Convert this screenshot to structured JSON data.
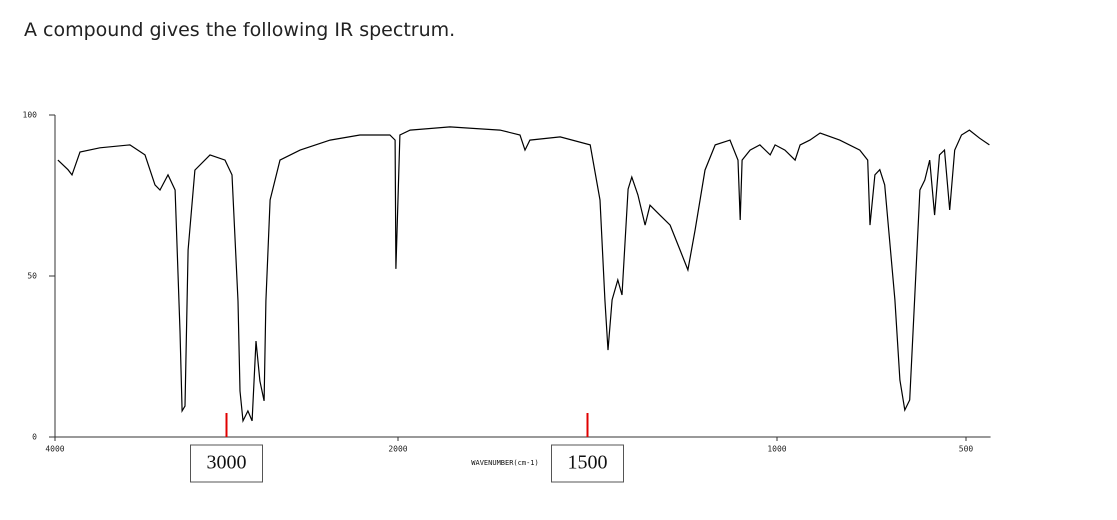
{
  "chart_data": {
    "type": "line",
    "title": "A compound gives the following IR spectrum.",
    "x_label": "WAVENUMBER(cm-1)",
    "x": [
      3983,
      3924,
      3901,
      3854,
      3738,
      3563,
      3475,
      3417,
      3388,
      3341,
      3300,
      3271,
      3259,
      3242,
      3224,
      3184,
      3096,
      3009,
      2968,
      2933,
      2921,
      2904,
      2875,
      2851,
      2828,
      2805,
      2781,
      2770,
      2746,
      2688,
      2571,
      2396,
      2222,
      2047,
      2017,
      2012,
      2000,
      1995,
      1968,
      1863,
      1731,
      1678,
      1665,
      1652,
      1572,
      1493,
      1467,
      1454,
      1446,
      1435,
      1420,
      1409,
      1393,
      1383,
      1367,
      1348,
      1335,
      1309,
      1282,
      1256,
      1235,
      1216,
      1190,
      1163,
      1124,
      1103,
      1097,
      1092,
      1071,
      1045,
      1018,
      1005,
      979,
      952,
      939,
      913,
      886,
      834,
      781,
      760,
      754,
      741,
      728,
      715,
      688,
      675,
      662,
      649,
      636,
      622,
      609,
      596,
      583,
      570,
      557,
      543,
      530,
      512,
      491,
      464,
      438
    ],
    "values": [
      86.0,
      83.0,
      81.4,
      88.5,
      89.8,
      90.7,
      87.6,
      78.3,
      76.7,
      81.4,
      76.7,
      32.9,
      8.1,
      9.6,
      58.1,
      82.9,
      87.6,
      86.0,
      81.4,
      42.2,
      14.3,
      5.0,
      8.1,
      5.0,
      29.8,
      17.4,
      11.2,
      42.2,
      73.6,
      86.0,
      89.1,
      92.2,
      93.8,
      93.8,
      92.2,
      52.2,
      73.9,
      93.8,
      95.3,
      96.3,
      95.3,
      93.8,
      89.1,
      92.2,
      93.2,
      90.7,
      73.6,
      42.6,
      27.0,
      42.6,
      48.8,
      44.1,
      77.0,
      80.7,
      75.2,
      65.8,
      72.0,
      68.9,
      65.8,
      58.1,
      51.9,
      64.3,
      82.9,
      90.7,
      92.2,
      86.0,
      67.4,
      86.0,
      89.1,
      90.7,
      87.6,
      90.7,
      89.1,
      86.0,
      90.7,
      92.2,
      94.4,
      92.2,
      89.1,
      86.0,
      65.8,
      81.4,
      83.0,
      78.3,
      42.6,
      17.7,
      8.4,
      11.5,
      42.6,
      76.7,
      79.8,
      86.0,
      68.9,
      87.6,
      89.1,
      70.5,
      89.1,
      93.8,
      95.3,
      92.8,
      90.7
    ],
    "color": "#000000",
    "xlim": [
      4000,
      435
    ],
    "xticks": [
      4000,
      2000,
      1000,
      500
    ],
    "ylim": [
      0,
      100
    ],
    "yticks": [
      0,
      50,
      100
    ],
    "annotations": [
      3000,
      1500
    ],
    "annotation_color": "#e00000"
  }
}
